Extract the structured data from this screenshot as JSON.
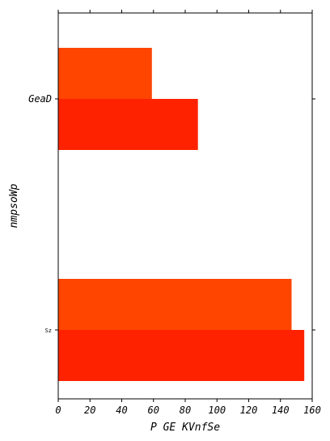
{
  "chart_data": {
    "type": "bar",
    "orientation": "horizontal",
    "title": "",
    "xlabel": "P GE KVnfSe",
    "ylabel": "nmpsoWp",
    "categories": [
      "GeaD",
      "Sz"
    ],
    "xlim": [
      0,
      160
    ],
    "xticks": [
      "0",
      "20",
      "40",
      "60",
      "80",
      "100",
      "120",
      "140",
      "160"
    ],
    "grid": false,
    "legend": "none",
    "series": [
      {
        "values": [
          59,
          147
        ],
        "color": "#ff4500"
      },
      {
        "values": [
          88,
          155
        ],
        "color": "#ff2200"
      }
    ]
  }
}
